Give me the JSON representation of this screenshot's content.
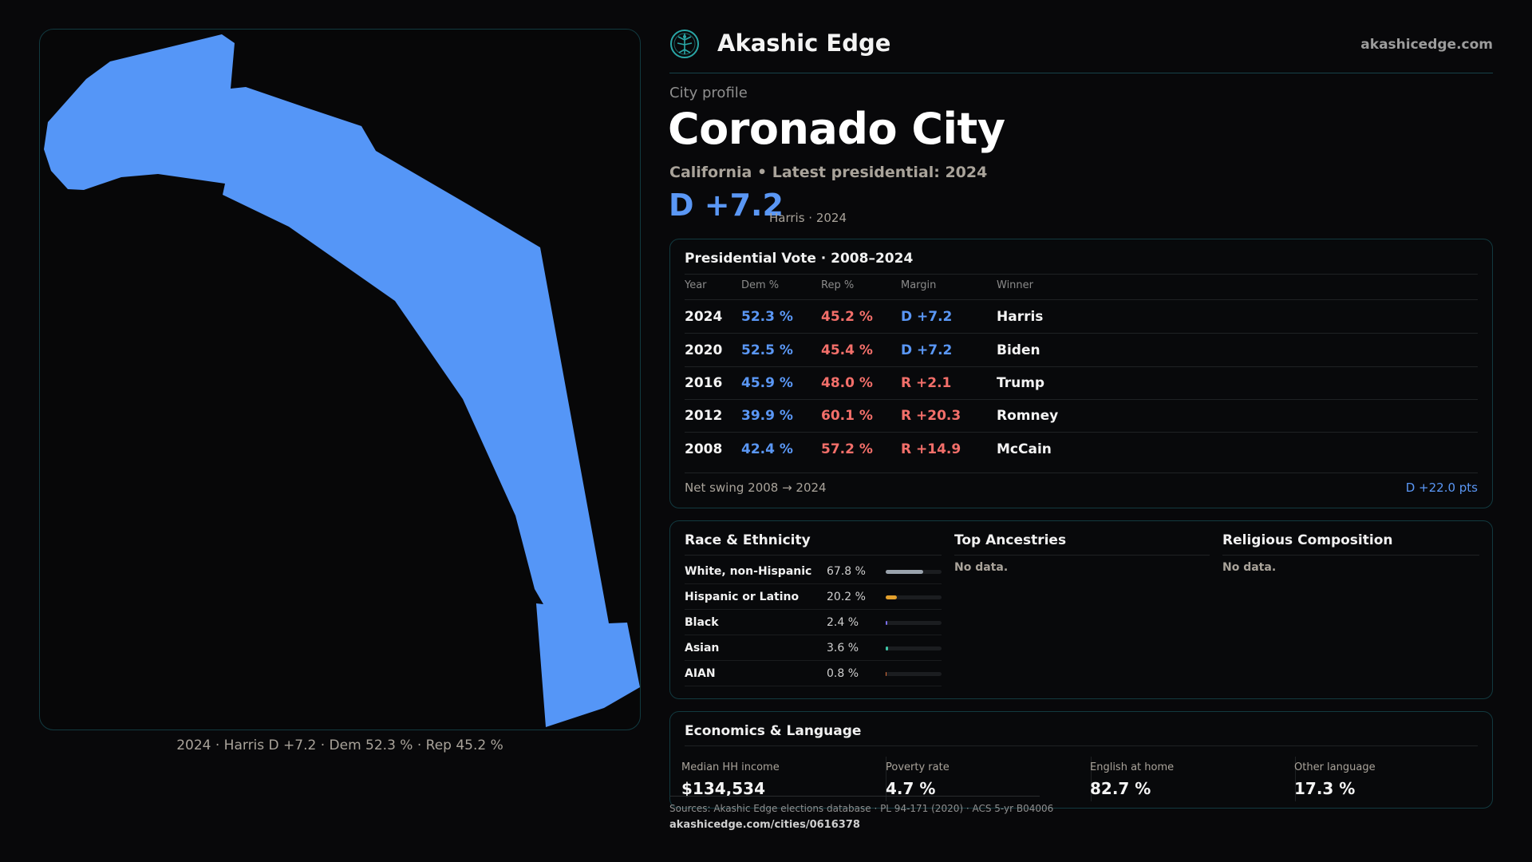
{
  "brand": {
    "name": "Akashic Edge",
    "url": "akashicedge.com",
    "logo_icon": "tree-of-life-icon",
    "accent": "#2aa6a6"
  },
  "header": {
    "label": "City profile",
    "city": "Coronado City",
    "subtitle": "California • Latest presidential: 2024",
    "margin": "D +7.2",
    "margin_note": "Harris · 2024"
  },
  "map": {
    "fill_color": "#5596f7",
    "caption": "2024 · Harris D +7.2 · Dem 52.3 % · Rep 45.2 %"
  },
  "vote": {
    "title": "Presidential Vote · 2008–2024",
    "headers": {
      "year": "Year",
      "dem": "Dem %",
      "rep": "Rep %",
      "margin": "Margin",
      "winner": "Winner"
    },
    "rows": [
      {
        "year": "2024",
        "dem": "52.3 %",
        "rep": "45.2 %",
        "margin": "D +7.2",
        "party": "D",
        "winner": "Harris"
      },
      {
        "year": "2020",
        "dem": "52.5 %",
        "rep": "45.4 %",
        "margin": "D +7.2",
        "party": "D",
        "winner": "Biden"
      },
      {
        "year": "2016",
        "dem": "45.9 %",
        "rep": "48.0 %",
        "margin": "R +2.1",
        "party": "R",
        "winner": "Trump"
      },
      {
        "year": "2012",
        "dem": "39.9 %",
        "rep": "60.1 %",
        "margin": "R +20.3",
        "party": "R",
        "winner": "Romney"
      },
      {
        "year": "2008",
        "dem": "42.4 %",
        "rep": "57.2 %",
        "margin": "R +14.9",
        "party": "R",
        "winner": "McCain"
      }
    ],
    "swing_label": "Net swing 2008 → 2024",
    "swing_value": "D +22.0 pts",
    "dem_color": "#5a97f5",
    "rep_color": "#f36f6a"
  },
  "race": {
    "title": "Race & Ethnicity",
    "rows": [
      {
        "label": "White, non-Hispanic",
        "pct": "67.8 %",
        "value": 67.8,
        "color": "#9aa3ad"
      },
      {
        "label": "Hispanic or Latino",
        "pct": "20.2 %",
        "value": 20.2,
        "color": "#e3a02c"
      },
      {
        "label": "Black",
        "pct": "2.4 %",
        "value": 2.4,
        "color": "#7a6ff0"
      },
      {
        "label": "Asian",
        "pct": "3.6 %",
        "value": 3.6,
        "color": "#3fc7a8"
      },
      {
        "label": "AIAN",
        "pct": "0.8 %",
        "value": 0.8,
        "color": "#e0703a"
      }
    ]
  },
  "ancestries": {
    "title": "Top Ancestries",
    "empty": "No data."
  },
  "religion": {
    "title": "Religious Composition",
    "empty": "No data."
  },
  "economics": {
    "title": "Economics & Language",
    "stats": [
      {
        "label": "Median HH income",
        "value": "$134,534"
      },
      {
        "label": "Poverty rate",
        "value": "4.7 %"
      },
      {
        "label": "English at home",
        "value": "82.7 %"
      },
      {
        "label": "Other language",
        "value": "17.3 %"
      }
    ]
  },
  "footer": {
    "sources": "Sources: Akashic Edge elections database · PL 94-171 (2020) · ACS 5-yr B04006",
    "link": "akashicedge.com/cities/0616378"
  }
}
